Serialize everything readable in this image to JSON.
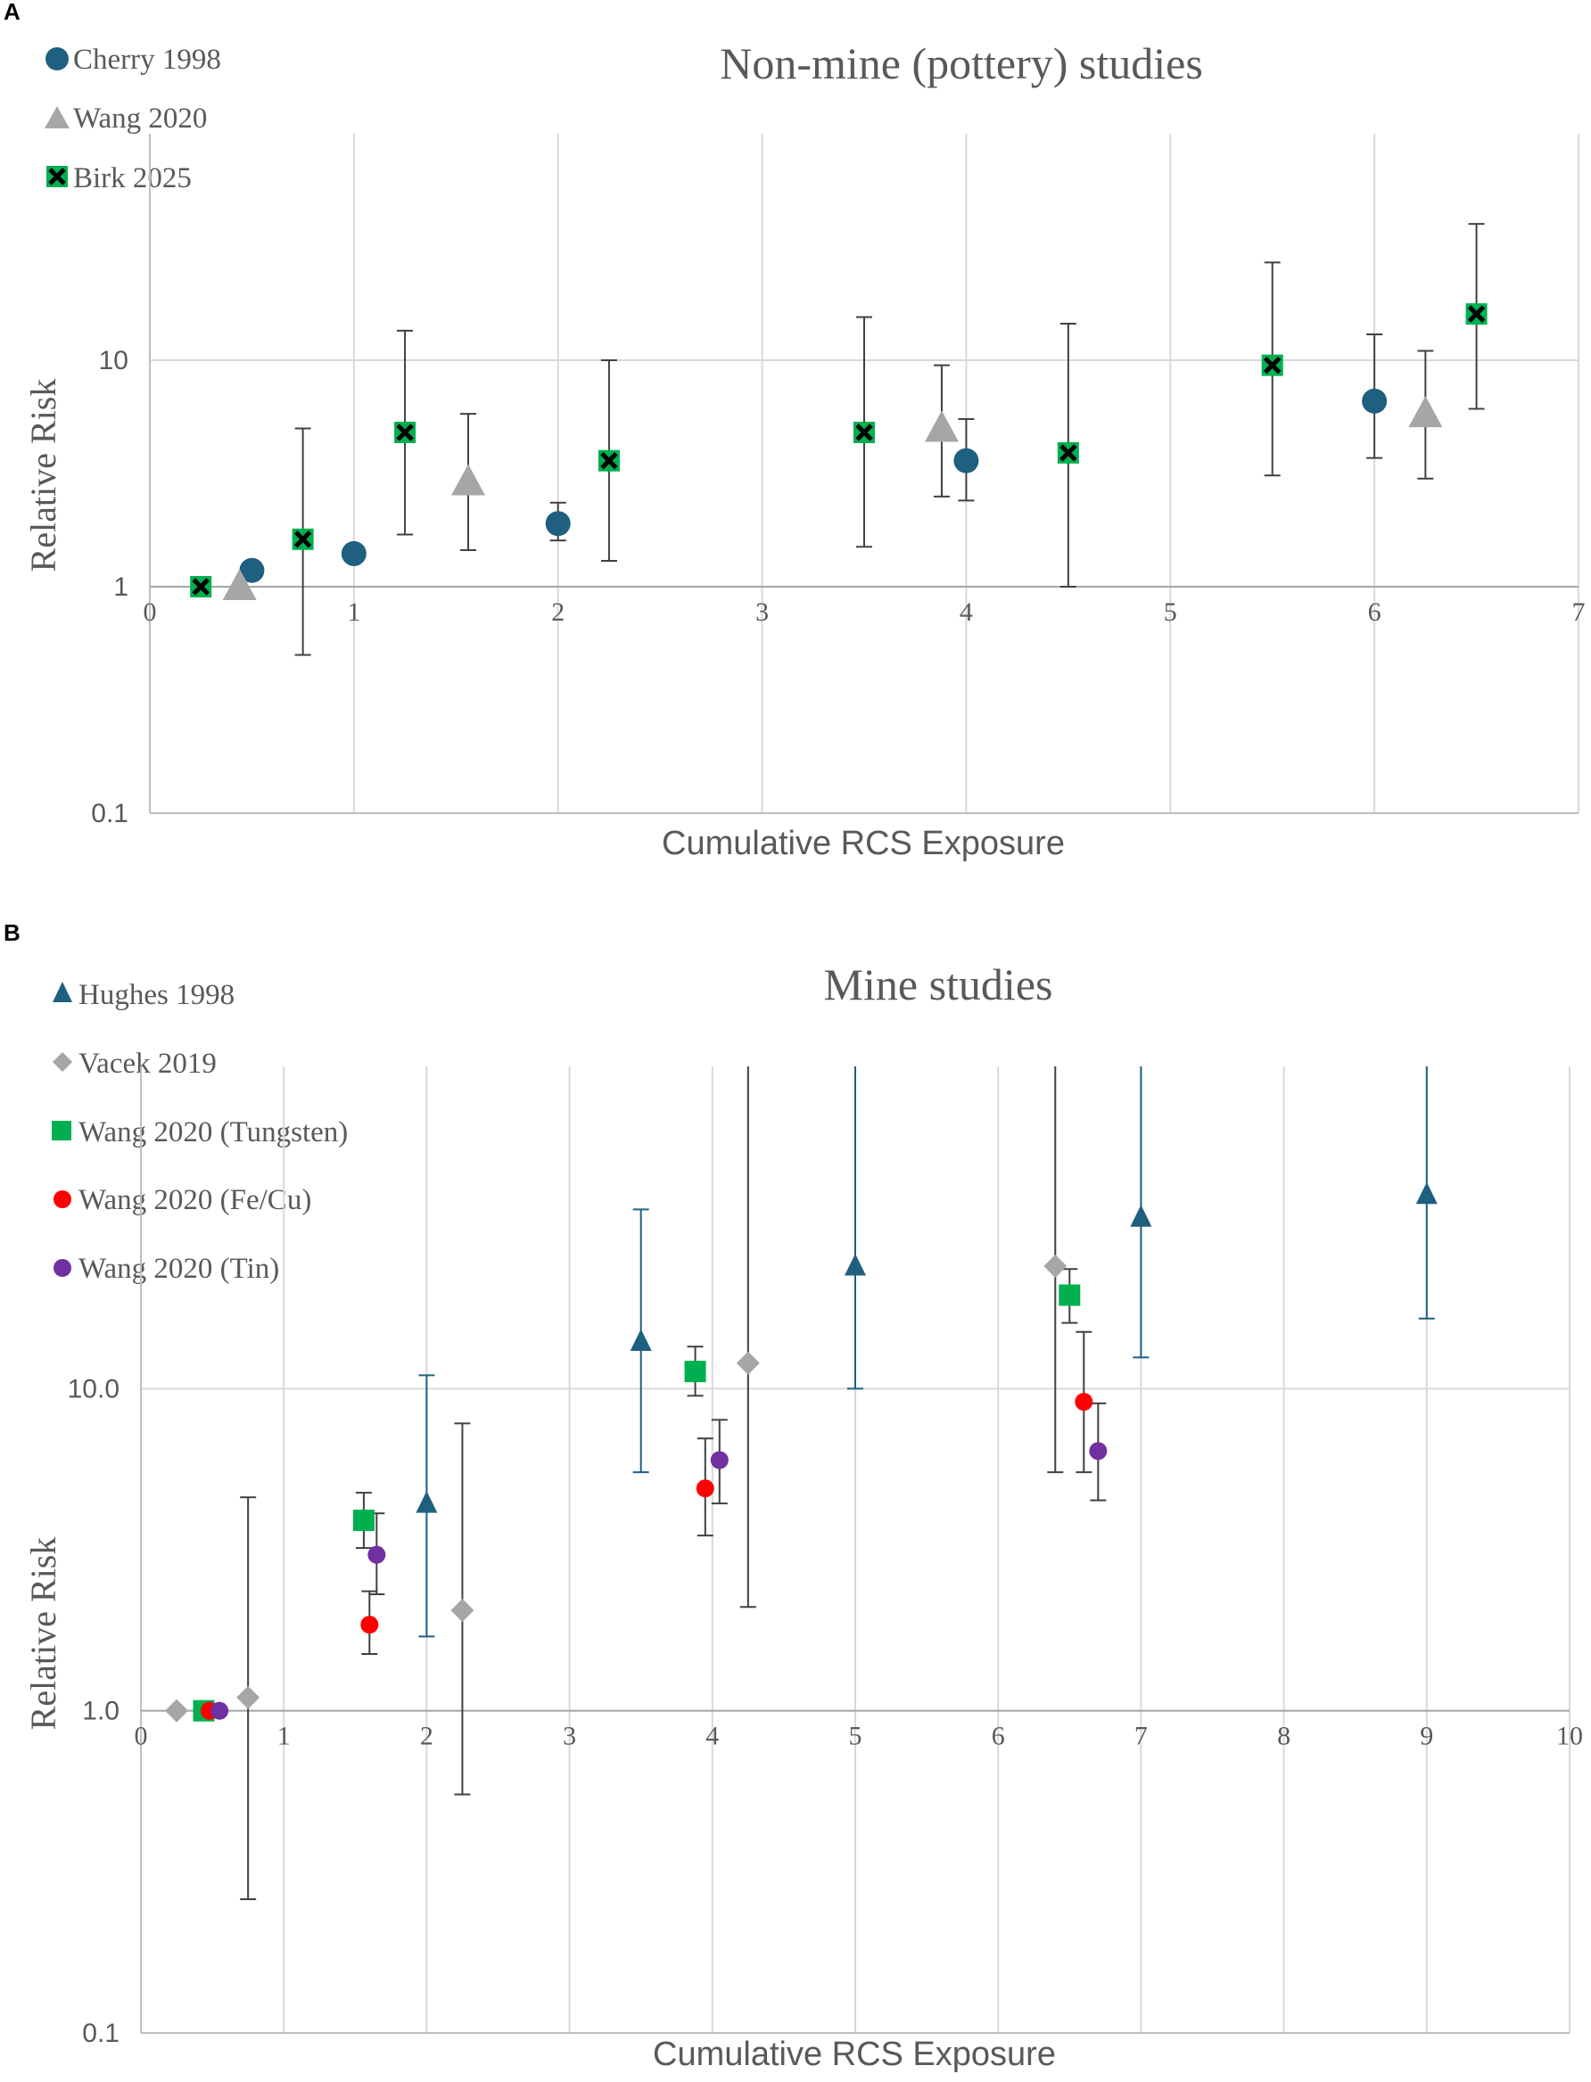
{
  "chart_data": [
    {
      "panel": "A",
      "type": "scatter",
      "title": "Non-mine (pottery) studies",
      "xlabel": "Cumulative RCS Exposure",
      "ylabel": "Relative Risk",
      "xlim": [
        0,
        7
      ],
      "ylim": [
        0.1,
        100
      ],
      "yscale": "log",
      "x_ticks": [
        "0",
        "1",
        "2",
        "3",
        "4",
        "5",
        "6",
        "7"
      ],
      "y_ticks": [
        "0.1",
        "1",
        "10"
      ],
      "legend_position": "top-left",
      "series": [
        {
          "name": "Cherry 1998",
          "marker": "circle",
          "color": "#1f5f7f",
          "points": [
            {
              "x": 0.5,
              "y": 1.18
            },
            {
              "x": 1.0,
              "y": 1.4
            },
            {
              "x": 2.0,
              "y": 1.9,
              "lo": 1.6,
              "hi": 2.35
            },
            {
              "x": 4.0,
              "y": 3.6,
              "lo": 2.4,
              "hi": 5.5
            },
            {
              "x": 6.0,
              "y": 6.6,
              "lo": 3.7,
              "hi": 13
            }
          ]
        },
        {
          "name": "Wang 2020",
          "marker": "triangle",
          "color": "#a6a6a6",
          "points": [
            {
              "x": 0.44,
              "y": 1.0
            },
            {
              "x": 1.56,
              "y": 2.9,
              "lo": 1.45,
              "hi": 5.8
            },
            {
              "x": 3.88,
              "y": 5.0,
              "lo": 2.5,
              "hi": 9.5
            },
            {
              "x": 6.25,
              "y": 5.8,
              "lo": 3.0,
              "hi": 11
            }
          ]
        },
        {
          "name": "Birk 2025",
          "marker": "x-square",
          "color": "#00b050",
          "points": [
            {
              "x": 0.25,
              "y": 1.0
            },
            {
              "x": 0.75,
              "y": 1.62,
              "lo": 0.5,
              "hi": 5.0
            },
            {
              "x": 1.25,
              "y": 4.8,
              "lo": 1.7,
              "hi": 13.5
            },
            {
              "x": 2.25,
              "y": 3.6,
              "lo": 1.3,
              "hi": 10
            },
            {
              "x": 3.5,
              "y": 4.8,
              "lo": 1.5,
              "hi": 15.5
            },
            {
              "x": 4.5,
              "y": 3.9,
              "lo": 1.0,
              "hi": 14.5
            },
            {
              "x": 5.5,
              "y": 9.5,
              "lo": 3.1,
              "hi": 27
            },
            {
              "x": 6.5,
              "y": 16,
              "lo": 6.1,
              "hi": 40
            }
          ]
        }
      ]
    },
    {
      "panel": "B",
      "type": "scatter",
      "title": "Mine studies",
      "xlabel": "Cumulative RCS Exposure",
      "ylabel": "Relative Risk",
      "xlim": [
        0,
        10
      ],
      "ylim": [
        0.1,
        100
      ],
      "yscale": "log",
      "x_ticks": [
        "0",
        "1",
        "2",
        "3",
        "4",
        "5",
        "6",
        "7",
        "8",
        "9",
        "10"
      ],
      "y_ticks": [
        "0.1",
        "1.0",
        "10.0"
      ],
      "legend_position": "top-left",
      "series": [
        {
          "name": "Hughes 1998",
          "marker": "triangle",
          "color": "#1f5f7f",
          "points": [
            {
              "x": 2.0,
              "y": 4.4,
              "lo": 1.7,
              "hi": 11
            },
            {
              "x": 3.5,
              "y": 14,
              "lo": 5.5,
              "hi": 36
            },
            {
              "x": 5.0,
              "y": 24,
              "lo": 10,
              "hi": 100
            },
            {
              "x": 7.0,
              "y": 34,
              "lo": 12.5,
              "hi": 100
            },
            {
              "x": 9.0,
              "y": 40,
              "lo": 16.5,
              "hi": 100
            }
          ]
        },
        {
          "name": "Vacek 2019",
          "marker": "diamond",
          "color": "#a6a6a6",
          "points": [
            {
              "x": 0.25,
              "y": 1.0
            },
            {
              "x": 0.75,
              "y": 1.1,
              "lo": 0.26,
              "hi": 4.6
            },
            {
              "x": 2.25,
              "y": 2.05,
              "lo": 0.55,
              "hi": 7.8
            },
            {
              "x": 4.25,
              "y": 12,
              "lo": 2.1,
              "hi": 100
            },
            {
              "x": 6.4,
              "y": 24,
              "lo": 5.5,
              "hi": 100
            }
          ]
        },
        {
          "name": "Wang 2020 (Tungsten)",
          "marker": "square",
          "color": "#00b050",
          "points": [
            {
              "x": 0.44,
              "y": 1.0
            },
            {
              "x": 1.56,
              "y": 3.9,
              "lo": 3.2,
              "hi": 4.75
            },
            {
              "x": 3.88,
              "y": 11.3,
              "lo": 9.5,
              "hi": 13.5
            },
            {
              "x": 6.5,
              "y": 19.5,
              "lo": 16,
              "hi": 23.5
            }
          ]
        },
        {
          "name": "Wang 2020 (Fe/Cu)",
          "marker": "circle",
          "color": "#ff0000",
          "points": [
            {
              "x": 0.48,
              "y": 1.0
            },
            {
              "x": 1.6,
              "y": 1.85,
              "lo": 1.5,
              "hi": 2.35
            },
            {
              "x": 3.95,
              "y": 4.9,
              "lo": 3.5,
              "hi": 7.0
            },
            {
              "x": 6.6,
              "y": 9.1,
              "lo": 5.5,
              "hi": 15
            }
          ]
        },
        {
          "name": "Wang 2020 (Tin)",
          "marker": "circle",
          "color": "#7030a0",
          "points": [
            {
              "x": 0.55,
              "y": 1.0
            },
            {
              "x": 1.65,
              "y": 3.05,
              "lo": 2.3,
              "hi": 4.1
            },
            {
              "x": 4.05,
              "y": 6.0,
              "lo": 4.4,
              "hi": 8.0
            },
            {
              "x": 6.7,
              "y": 6.4,
              "lo": 4.5,
              "hi": 9.0
            }
          ]
        }
      ]
    }
  ]
}
